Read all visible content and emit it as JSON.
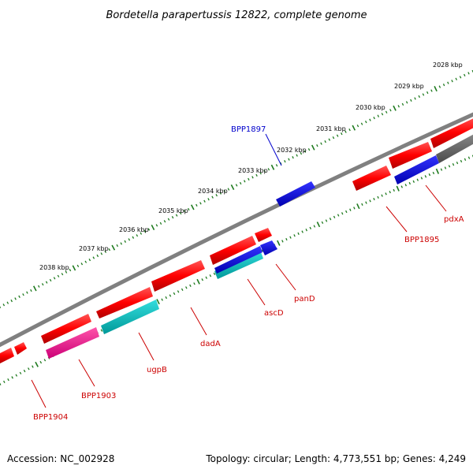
{
  "map": {
    "title": "Bordetella parapertussis 12822, complete genome",
    "accession": "Accession: NC_002928",
    "summary": "Topology: circular; Length: 4,773,551 bp; Genes: 4,249",
    "colors": {
      "backbone": "#808080",
      "tick": "#1e7a1e",
      "forward_gene": "#ff0000",
      "reverse_gene": "#0000ff",
      "label_default": "#cc0000",
      "label_highlight": "#0000cc",
      "rrna": "#00c0c0",
      "pseudo": "#ff1493",
      "other": "#666666"
    },
    "kbp_ticks": [
      "2028 kbp",
      "2029 kbp",
      "2030 kbp",
      "2031 kbp",
      "2032 kbp",
      "2033 kbp",
      "2034 kbp",
      "2035 kbp",
      "2036 kbp",
      "2037 kbp",
      "2038 kbp"
    ],
    "gene_labels": [
      "BPP1897",
      "BPP1895",
      "pdxA",
      "panD",
      "ascD",
      "dadA",
      "ugpB",
      "BPP1903",
      "BPP1904"
    ]
  }
}
